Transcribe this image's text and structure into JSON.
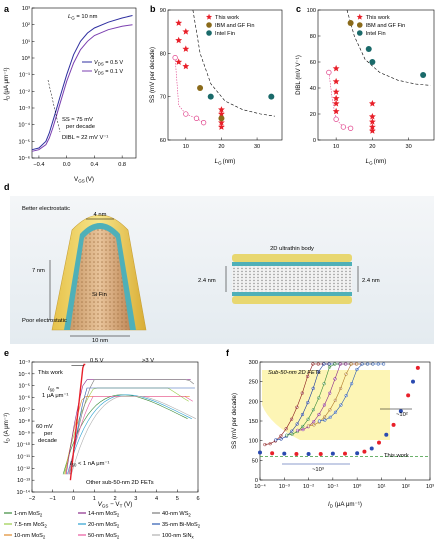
{
  "panel_labels": {
    "a": "a",
    "b": "b",
    "c": "c",
    "d": "d",
    "e": "e",
    "f": "f"
  },
  "chart_data": [
    {
      "id": "a",
      "type": "line",
      "xlabel": "V",
      "xlabel_sub": "GS",
      "xlabel_unit": "(V)",
      "ylabel": "I",
      "ylabel_sub": "D",
      "ylabel_unit": "(μA μm⁻¹)",
      "xlim": [
        -0.5,
        1.0
      ],
      "xticks": [
        -0.4,
        0.0,
        0.4,
        0.8
      ],
      "xtick_labels": [
        "−0.4",
        "0.0",
        "0.4",
        "0.8"
      ],
      "ylim_exp": [
        -6,
        3
      ],
      "ytick_labels": [
        "10⁻⁶",
        "10⁻⁵",
        "10⁻⁴",
        "10⁻³",
        "10⁻²",
        "10⁻¹",
        "10⁰",
        "10¹",
        "10²",
        "10³"
      ],
      "annotations": {
        "lg": "L",
        "lg_sub": "G",
        "lg_val": " = 10 nm",
        "ss": "SS ≈ 75 mV",
        "ss2": "per decade",
        "dibl": "DIBL ≈ 22 mV V⁻¹"
      },
      "series": [
        {
          "name": "V",
          "name_sub": "DS",
          "name_val": " = 0.5 V",
          "color": "#2f2fa0",
          "x": [
            -0.5,
            -0.4,
            -0.3,
            -0.25,
            -0.2,
            -0.15,
            -0.1,
            -0.05,
            0.0,
            0.1,
            0.2,
            0.3,
            0.4,
            0.6,
            0.8,
            0.95
          ],
          "logy": [
            -5.5,
            -5.4,
            -5.0,
            -4.5,
            -3.8,
            -3.1,
            -2.4,
            -1.7,
            -1.0,
            0.2,
            1.0,
            1.5,
            1.8,
            2.15,
            2.4,
            2.55
          ]
        },
        {
          "name": "V",
          "name_sub": "DS",
          "name_val": " = 0.1 V",
          "color": "#7b3fb0",
          "x": [
            -0.5,
            -0.4,
            -0.3,
            -0.25,
            -0.2,
            -0.15,
            -0.1,
            -0.05,
            0.0,
            0.1,
            0.2,
            0.3,
            0.4,
            0.6,
            0.8,
            0.95
          ],
          "logy": [
            -5.6,
            -5.5,
            -5.2,
            -4.8,
            -4.2,
            -3.5,
            -2.8,
            -2.1,
            -1.4,
            -0.3,
            0.5,
            1.0,
            1.35,
            1.7,
            1.9,
            2.0
          ]
        }
      ]
    },
    {
      "id": "b",
      "type": "scatter",
      "xlabel": "L",
      "xlabel_sub": "G",
      "xlabel_unit": "(nm)",
      "ylabel": "SS (mV per decade)",
      "xlim": [
        5,
        37
      ],
      "xticks": [
        10,
        20,
        30
      ],
      "ylim": [
        60,
        90
      ],
      "yticks": [
        60,
        70,
        80,
        90
      ],
      "legend": [
        "This work",
        "IBM and GF Fin",
        "Intel Fin"
      ],
      "this_work": {
        "x": [
          8,
          8,
          8,
          10,
          10,
          10,
          20,
          20,
          20,
          20
        ],
        "y": [
          78,
          83,
          87,
          85,
          81,
          77,
          67,
          66,
          64,
          63
        ]
      },
      "ibm": {
        "x": [
          14,
          20
        ],
        "y": [
          72,
          65
        ]
      },
      "intel": {
        "x": [
          17,
          34
        ],
        "y": [
          70,
          70
        ]
      },
      "pink_open": {
        "x": [
          7,
          10,
          13,
          15
        ],
        "y": [
          79,
          66,
          65,
          64
        ]
      },
      "pink_dashed": {
        "x": [
          7,
          8,
          10,
          13,
          15
        ],
        "y": [
          79,
          68,
          66,
          65,
          64
        ]
      },
      "dashed_trend": {
        "x": [
          12,
          14,
          17,
          21,
          26,
          31,
          35
        ],
        "y": [
          90,
          80,
          73,
          69,
          67,
          66,
          65.5
        ]
      }
    },
    {
      "id": "c",
      "type": "scatter",
      "xlabel": "L",
      "xlabel_sub": "G",
      "xlabel_unit": "(nm)",
      "ylabel": "DIBL (mV V⁻¹)",
      "xlim": [
        5,
        37
      ],
      "xticks": [
        10,
        20,
        30
      ],
      "ylim": [
        0,
        100
      ],
      "yticks": [
        0,
        20,
        40,
        60,
        80,
        100
      ],
      "legend": [
        "This work",
        "IBM and GF Fin",
        "Intel Fin"
      ],
      "this_work": {
        "x": [
          10,
          10,
          10,
          10,
          10,
          10,
          20,
          20,
          20,
          20,
          20
        ],
        "y": [
          55,
          45,
          37,
          32,
          28,
          22,
          28,
          18,
          14,
          10,
          7
        ]
      },
      "ibm": {
        "x": [
          14
        ],
        "y": [
          90
        ]
      },
      "intel": {
        "x": [
          19,
          20,
          34
        ],
        "y": [
          70,
          60,
          50
        ]
      },
      "pink_open": {
        "x": [
          8,
          10,
          12,
          14
        ],
        "y": [
          52,
          16,
          10,
          9
        ]
      },
      "pink_dashed": {
        "x": [
          8,
          9,
          10,
          12,
          14
        ],
        "y": [
          52,
          30,
          16,
          10,
          9
        ]
      },
      "dashed_trend": {
        "x": [
          13,
          15,
          18,
          22,
          27,
          32,
          36
        ],
        "y": [
          100,
          80,
          62,
          52,
          46,
          43,
          42
        ]
      }
    },
    {
      "id": "e",
      "type": "line",
      "xlabel": "V",
      "xlabel_sub": "GS",
      "xlabel_mid": " − V",
      "xlabel_sub2": "T",
      "xlabel_unit": " (V)",
      "ylabel": "I",
      "ylabel_sub": "D",
      "ylabel_unit": " (A μm⁻¹)",
      "xlim": [
        -2,
        6
      ],
      "xticks": [
        -2,
        -1,
        0,
        1,
        2,
        3,
        4,
        5,
        6
      ],
      "ylim_exp": [
        -14,
        -3
      ],
      "ytick_labels": [
        "10⁻¹⁴",
        "10⁻¹³",
        "10⁻¹²",
        "10⁻¹¹",
        "10⁻¹⁰",
        "10⁻⁹",
        "10⁻⁸",
        "10⁻⁷",
        "10⁻⁶",
        "10⁻⁵",
        "10⁻⁴",
        "10⁻³"
      ],
      "annotations": {
        "this_work": "This work",
        "v05": "0.5 V",
        "v3": ">3 V",
        "i60": "I",
        "i60_sub": "60",
        "i60_a": " ≈",
        "i60_b": "1 μA μm⁻¹",
        "slope": "60 mV",
        "slope2": "per",
        "slope3": "decade",
        "i60_low": "I",
        "i60_low_sub": "60",
        "i60_low_b": " < 1 nA μm⁻¹",
        "other": "Other sub-50-nm 2D FETs"
      },
      "legend": [
        {
          "label": "1-nm MoS",
          "sub": "2",
          "color": "#3a8a3a"
        },
        {
          "label": "7.5-nm MoS",
          "sub": "2",
          "color": "#9acd4a"
        },
        {
          "label": "10-nm MoS",
          "sub": "2",
          "color": "#e08a2a"
        },
        {
          "label": "14-nm MoS",
          "sub": "2",
          "color": "#8a2a8a"
        },
        {
          "label": "20-nm MoS",
          "sub": "2",
          "color": "#2aa0d0"
        },
        {
          "label": "50-nm MoS",
          "sub": "2",
          "color": "#e85aa0"
        },
        {
          "label": "40-nm WS",
          "sub": "2",
          "color": "#7a7a7a"
        },
        {
          "label": "35-nm Bi-MoS",
          "sub": "2",
          "color": "#2a5ab0"
        },
        {
          "label": "100-nm SiN",
          "sub": "x",
          "color": "#b0b0b0"
        }
      ]
    },
    {
      "id": "f",
      "type": "line",
      "xlabel": "I",
      "xlabel_sub": "D",
      "xlabel_unit": " (μA μm⁻¹)",
      "ylabel": "SS (mV per decade)",
      "xlim_exp": [
        -4,
        3
      ],
      "xtick_labels": [
        "10⁻⁴",
        "10⁻³",
        "10⁻²",
        "10⁻¹",
        "10⁰",
        "10¹",
        "10²",
        "10³"
      ],
      "ylim": [
        0,
        300
      ],
      "yticks": [
        0,
        50,
        100,
        150,
        200,
        250,
        300
      ],
      "annotations": {
        "sub50": "Sub-50-nm 2D FETs",
        "e2": "~10²",
        "e3": "~10³",
        "this_work": "This work"
      },
      "this_work_series": {
        "logx": [
          -4,
          -3.5,
          -3,
          -2.5,
          -2,
          -1.5,
          -1,
          -0.5,
          0,
          0.3,
          0.6,
          0.9,
          1.2,
          1.5,
          1.8,
          2.1,
          2.3,
          2.5
        ],
        "y": [
          70,
          68,
          67,
          66,
          66,
          66,
          67,
          67,
          68,
          72,
          80,
          95,
          115,
          140,
          175,
          215,
          250,
          285
        ]
      }
    }
  ],
  "diagram_d": {
    "label_better": "Better electrostatic",
    "label_poor": "Poor electrostatic",
    "label_4nm": "4 nm",
    "label_7nm": "7 nm",
    "label_10nm": "10 nm",
    "label_fin": "Si Fin",
    "label_2d": "2D ultrathin body",
    "label_24a": "2.4 nm",
    "label_24b": "2.4 nm"
  }
}
